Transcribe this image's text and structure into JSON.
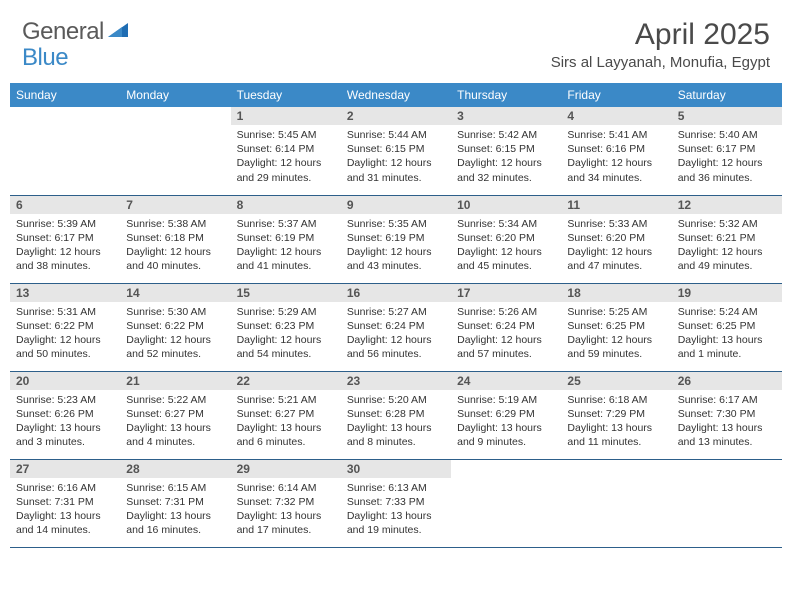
{
  "logo": {
    "general": "General",
    "blue": "Blue"
  },
  "title": "April 2025",
  "location": "Sirs al Layyanah, Monufia, Egypt",
  "colors": {
    "header_bg": "#3b89c7",
    "header_text": "#ffffff",
    "daynum_bg": "#e6e6e6",
    "daynum_text": "#555555",
    "border": "#2d5f8a",
    "logo_gray": "#5a5a5a",
    "logo_blue": "#3b89c7"
  },
  "day_headers": [
    "Sunday",
    "Monday",
    "Tuesday",
    "Wednesday",
    "Thursday",
    "Friday",
    "Saturday"
  ],
  "weeks": [
    [
      {
        "empty": true
      },
      {
        "empty": true
      },
      {
        "n": "1",
        "sunrise": "Sunrise: 5:45 AM",
        "sunset": "Sunset: 6:14 PM",
        "daylight": "Daylight: 12 hours and 29 minutes."
      },
      {
        "n": "2",
        "sunrise": "Sunrise: 5:44 AM",
        "sunset": "Sunset: 6:15 PM",
        "daylight": "Daylight: 12 hours and 31 minutes."
      },
      {
        "n": "3",
        "sunrise": "Sunrise: 5:42 AM",
        "sunset": "Sunset: 6:15 PM",
        "daylight": "Daylight: 12 hours and 32 minutes."
      },
      {
        "n": "4",
        "sunrise": "Sunrise: 5:41 AM",
        "sunset": "Sunset: 6:16 PM",
        "daylight": "Daylight: 12 hours and 34 minutes."
      },
      {
        "n": "5",
        "sunrise": "Sunrise: 5:40 AM",
        "sunset": "Sunset: 6:17 PM",
        "daylight": "Daylight: 12 hours and 36 minutes."
      }
    ],
    [
      {
        "n": "6",
        "sunrise": "Sunrise: 5:39 AM",
        "sunset": "Sunset: 6:17 PM",
        "daylight": "Daylight: 12 hours and 38 minutes."
      },
      {
        "n": "7",
        "sunrise": "Sunrise: 5:38 AM",
        "sunset": "Sunset: 6:18 PM",
        "daylight": "Daylight: 12 hours and 40 minutes."
      },
      {
        "n": "8",
        "sunrise": "Sunrise: 5:37 AM",
        "sunset": "Sunset: 6:19 PM",
        "daylight": "Daylight: 12 hours and 41 minutes."
      },
      {
        "n": "9",
        "sunrise": "Sunrise: 5:35 AM",
        "sunset": "Sunset: 6:19 PM",
        "daylight": "Daylight: 12 hours and 43 minutes."
      },
      {
        "n": "10",
        "sunrise": "Sunrise: 5:34 AM",
        "sunset": "Sunset: 6:20 PM",
        "daylight": "Daylight: 12 hours and 45 minutes."
      },
      {
        "n": "11",
        "sunrise": "Sunrise: 5:33 AM",
        "sunset": "Sunset: 6:20 PM",
        "daylight": "Daylight: 12 hours and 47 minutes."
      },
      {
        "n": "12",
        "sunrise": "Sunrise: 5:32 AM",
        "sunset": "Sunset: 6:21 PM",
        "daylight": "Daylight: 12 hours and 49 minutes."
      }
    ],
    [
      {
        "n": "13",
        "sunrise": "Sunrise: 5:31 AM",
        "sunset": "Sunset: 6:22 PM",
        "daylight": "Daylight: 12 hours and 50 minutes."
      },
      {
        "n": "14",
        "sunrise": "Sunrise: 5:30 AM",
        "sunset": "Sunset: 6:22 PM",
        "daylight": "Daylight: 12 hours and 52 minutes."
      },
      {
        "n": "15",
        "sunrise": "Sunrise: 5:29 AM",
        "sunset": "Sunset: 6:23 PM",
        "daylight": "Daylight: 12 hours and 54 minutes."
      },
      {
        "n": "16",
        "sunrise": "Sunrise: 5:27 AM",
        "sunset": "Sunset: 6:24 PM",
        "daylight": "Daylight: 12 hours and 56 minutes."
      },
      {
        "n": "17",
        "sunrise": "Sunrise: 5:26 AM",
        "sunset": "Sunset: 6:24 PM",
        "daylight": "Daylight: 12 hours and 57 minutes."
      },
      {
        "n": "18",
        "sunrise": "Sunrise: 5:25 AM",
        "sunset": "Sunset: 6:25 PM",
        "daylight": "Daylight: 12 hours and 59 minutes."
      },
      {
        "n": "19",
        "sunrise": "Sunrise: 5:24 AM",
        "sunset": "Sunset: 6:25 PM",
        "daylight": "Daylight: 13 hours and 1 minute."
      }
    ],
    [
      {
        "n": "20",
        "sunrise": "Sunrise: 5:23 AM",
        "sunset": "Sunset: 6:26 PM",
        "daylight": "Daylight: 13 hours and 3 minutes."
      },
      {
        "n": "21",
        "sunrise": "Sunrise: 5:22 AM",
        "sunset": "Sunset: 6:27 PM",
        "daylight": "Daylight: 13 hours and 4 minutes."
      },
      {
        "n": "22",
        "sunrise": "Sunrise: 5:21 AM",
        "sunset": "Sunset: 6:27 PM",
        "daylight": "Daylight: 13 hours and 6 minutes."
      },
      {
        "n": "23",
        "sunrise": "Sunrise: 5:20 AM",
        "sunset": "Sunset: 6:28 PM",
        "daylight": "Daylight: 13 hours and 8 minutes."
      },
      {
        "n": "24",
        "sunrise": "Sunrise: 5:19 AM",
        "sunset": "Sunset: 6:29 PM",
        "daylight": "Daylight: 13 hours and 9 minutes."
      },
      {
        "n": "25",
        "sunrise": "Sunrise: 6:18 AM",
        "sunset": "Sunset: 7:29 PM",
        "daylight": "Daylight: 13 hours and 11 minutes."
      },
      {
        "n": "26",
        "sunrise": "Sunrise: 6:17 AM",
        "sunset": "Sunset: 7:30 PM",
        "daylight": "Daylight: 13 hours and 13 minutes."
      }
    ],
    [
      {
        "n": "27",
        "sunrise": "Sunrise: 6:16 AM",
        "sunset": "Sunset: 7:31 PM",
        "daylight": "Daylight: 13 hours and 14 minutes."
      },
      {
        "n": "28",
        "sunrise": "Sunrise: 6:15 AM",
        "sunset": "Sunset: 7:31 PM",
        "daylight": "Daylight: 13 hours and 16 minutes."
      },
      {
        "n": "29",
        "sunrise": "Sunrise: 6:14 AM",
        "sunset": "Sunset: 7:32 PM",
        "daylight": "Daylight: 13 hours and 17 minutes."
      },
      {
        "n": "30",
        "sunrise": "Sunrise: 6:13 AM",
        "sunset": "Sunset: 7:33 PM",
        "daylight": "Daylight: 13 hours and 19 minutes."
      },
      {
        "empty": true
      },
      {
        "empty": true
      },
      {
        "empty": true
      }
    ]
  ]
}
